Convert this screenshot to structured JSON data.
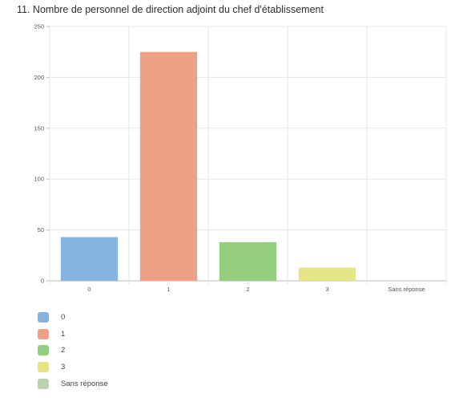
{
  "chart_data": {
    "type": "bar",
    "title": "11. Nombre de personnel de direction adjoint du chef d'établissement",
    "categories": [
      "0",
      "1",
      "2",
      "3",
      "Sans réponse"
    ],
    "values": [
      43,
      225,
      38,
      13,
      0
    ],
    "colors": [
      "#85b4e0",
      "#eda286",
      "#95cd7f",
      "#e6e585",
      "#b9d3b0"
    ],
    "ylim": [
      0,
      250
    ],
    "yticks": [
      0,
      50,
      100,
      150,
      200,
      250
    ],
    "grid": true,
    "legend": "bottom-left"
  }
}
